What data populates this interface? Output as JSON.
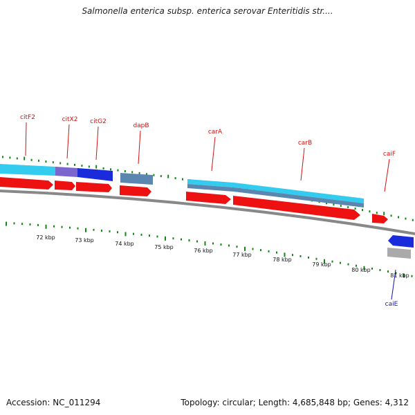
{
  "title": "Salmonella enterica subsp. enterica serovar Enteritidis str....",
  "footer": {
    "accession_text": "Accession: NC_011294",
    "summary_text": "Topology: circular; Length: 4,685,848 bp; Genes: 4,312"
  },
  "colors": {
    "forward_cds": "#ee1111",
    "reverse_cds": "#1111dd",
    "cyan_feature": "#33ccee",
    "steel_feature": "#5a86b0",
    "grey_feature": "#aaaaaa",
    "purple_feature": "#7a66cc",
    "tick": "#118811",
    "backbone": "#888888",
    "forward_label": "#cc1111",
    "reverse_label": "#1111bb"
  },
  "scale_labels": [
    "72 kbp",
    "73 kbp",
    "74 kbp",
    "75 kbp",
    "76 kbp",
    "77 kbp",
    "78 kbp",
    "79 kbp",
    "80 kbp",
    "81 kbp"
  ],
  "gene_labels": [
    {
      "name": "citF2",
      "strand": "forward"
    },
    {
      "name": "citX2",
      "strand": "forward"
    },
    {
      "name": "citG2",
      "strand": "forward"
    },
    {
      "name": "dapB",
      "strand": "forward"
    },
    {
      "name": "carA",
      "strand": "forward"
    },
    {
      "name": "carB",
      "strand": "forward"
    },
    {
      "name": "caiF",
      "strand": "forward"
    },
    {
      "name": "caiE",
      "strand": "reverse"
    }
  ]
}
